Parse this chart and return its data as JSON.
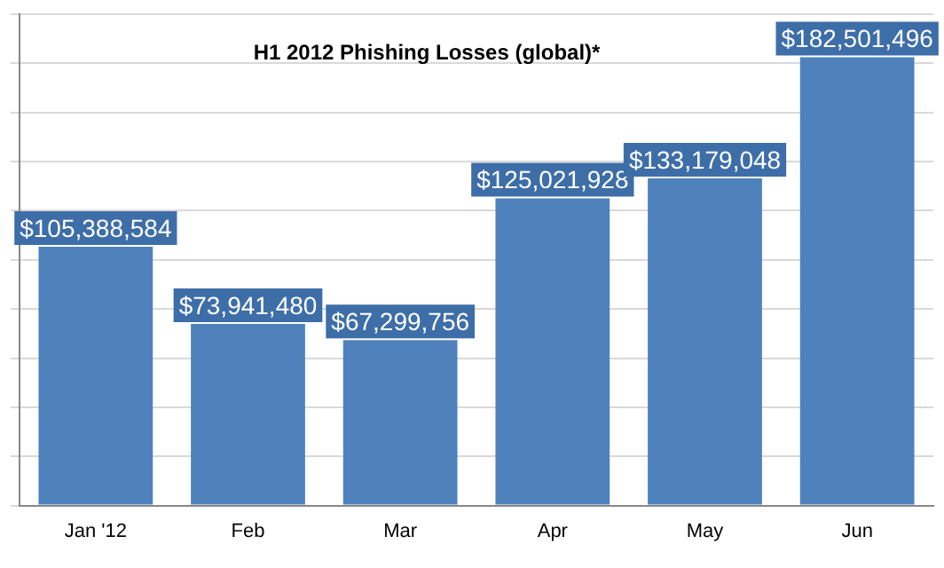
{
  "chart_data": {
    "type": "bar",
    "title": "H1 2012 Phishing Losses (global)*",
    "categories": [
      "Jan '12",
      "Feb",
      "Mar",
      "Apr",
      "May",
      "Jun"
    ],
    "values": [
      105388584,
      73941480,
      67299756,
      125021928,
      133179048,
      182501496
    ],
    "value_labels": [
      "$105,388,584",
      "$73,941,480",
      "$67,299,756",
      "$125,021,928",
      "$133,179,048",
      "$182,501,496"
    ],
    "color": "#4f81bd",
    "ylim": [
      0,
      200000000
    ],
    "yticks": [
      {
        "value": 0,
        "label": null
      },
      {
        "value": 20000000,
        "label": null
      },
      {
        "value": 40000000,
        "label": null
      },
      {
        "value": 60000000,
        "label": null
      },
      {
        "value": 80000000,
        "label": null
      },
      {
        "value": 100000000,
        "label": null
      },
      {
        "value": 120000000,
        "label": null
      },
      {
        "value": 140000000,
        "label": null
      },
      {
        "value": 160000000,
        "label": null
      },
      {
        "value": 180000000,
        "label": null
      },
      {
        "value": 200000000,
        "label": null
      }
    ],
    "grid": "y",
    "tick_labels": "x",
    "legend": false
  }
}
